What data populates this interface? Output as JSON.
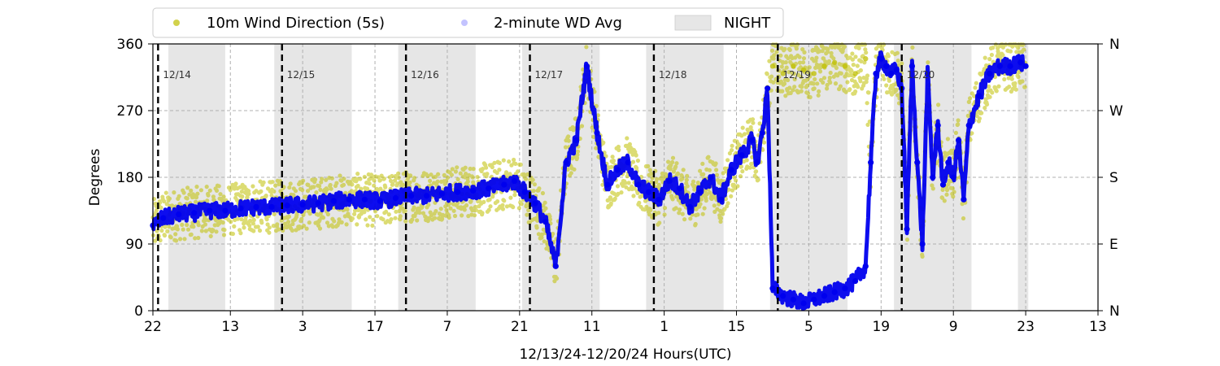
{
  "chart_data": {
    "type": "scatter",
    "xlabel": "12/13/24-12/20/24  Hours(UTC)",
    "ylabel": "Degrees",
    "ylim": [
      0,
      360
    ],
    "y_ticks": [
      0,
      90,
      180,
      270,
      360
    ],
    "y2_ticks": [
      {
        "value": 0,
        "label": "N"
      },
      {
        "value": 90,
        "label": "E"
      },
      {
        "value": 180,
        "label": "S"
      },
      {
        "value": 270,
        "label": "W"
      },
      {
        "value": 360,
        "label": "N"
      }
    ],
    "x_unit": "hours since 2024-12-13 22:00 UTC",
    "xlim": [
      0,
      183
    ],
    "x_ticks": [
      {
        "value": 0,
        "label": "22"
      },
      {
        "value": 15,
        "label": "13"
      },
      {
        "value": 29,
        "label": "3"
      },
      {
        "value": 43,
        "label": "17"
      },
      {
        "value": 57,
        "label": "7"
      },
      {
        "value": 71,
        "label": "21"
      },
      {
        "value": 85,
        "label": "11"
      },
      {
        "value": 99,
        "label": "1"
      },
      {
        "value": 113,
        "label": "15"
      },
      {
        "value": 127,
        "label": "5"
      },
      {
        "value": 141,
        "label": "19"
      },
      {
        "value": 155,
        "label": "9"
      },
      {
        "value": 169,
        "label": "23"
      },
      {
        "value": 183,
        "label": "13"
      }
    ],
    "grid": true,
    "legend_position": "top",
    "day_markers": [
      {
        "x": 1,
        "label": "12/14"
      },
      {
        "x": 25,
        "label": "12/15"
      },
      {
        "x": 49,
        "label": "12/16"
      },
      {
        "x": 73,
        "label": "12/17"
      },
      {
        "x": 97,
        "label": "12/18"
      },
      {
        "x": 121,
        "label": "12/19"
      },
      {
        "x": 145,
        "label": "12/20"
      }
    ],
    "night_periods": [
      [
        3,
        14
      ],
      [
        23.5,
        38.5
      ],
      [
        47.5,
        62.5
      ],
      [
        71.5,
        86.5
      ],
      [
        95.5,
        110.5
      ],
      [
        119.5,
        134.5
      ],
      [
        143.5,
        158.5
      ],
      [
        167.5,
        169.5
      ]
    ],
    "series": [
      {
        "name": "10m Wind Direction (5s)",
        "color": "#bfbf00",
        "x": [
          0,
          2,
          5,
          8,
          11,
          14,
          17,
          20,
          23,
          26,
          29,
          32,
          35,
          38,
          41,
          44,
          47,
          50,
          53,
          56,
          59,
          62,
          65,
          68,
          70,
          72,
          74,
          76,
          78,
          80,
          82,
          84,
          86,
          88,
          90,
          92,
          94,
          96,
          98,
          100,
          102,
          104,
          106,
          108,
          110,
          112,
          114,
          116,
          117,
          118,
          119,
          120,
          122,
          124,
          126,
          128,
          130,
          132,
          134,
          136,
          138,
          139,
          140,
          141,
          142,
          143,
          144,
          145,
          146,
          147,
          148,
          149,
          150,
          151,
          152,
          153,
          154,
          155,
          156,
          157,
          158,
          160,
          162,
          164,
          166,
          168,
          169
        ],
        "y": [
          115,
          125,
          130,
          132,
          135,
          135,
          138,
          140,
          140,
          142,
          143,
          145,
          148,
          150,
          150,
          148,
          152,
          155,
          155,
          158,
          160,
          162,
          165,
          170,
          175,
          160,
          145,
          120,
          60,
          200,
          230,
          330,
          240,
          170,
          190,
          200,
          170,
          160,
          150,
          175,
          165,
          140,
          160,
          180,
          150,
          190,
          210,
          230,
          200,
          240,
          300,
          330,
          320,
          330,
          325,
          320,
          330,
          335,
          330,
          320,
          340,
          200,
          320,
          340,
          330,
          320,
          325,
          300,
          110,
          330,
          200,
          90,
          320,
          180,
          250,
          170,
          200,
          180,
          230,
          150,
          250,
          290,
          320,
          330,
          330,
          335,
          330
        ]
      },
      {
        "name": "2-minute WD Avg",
        "color": "#0000ee",
        "x": [
          0,
          2,
          5,
          8,
          11,
          14,
          17,
          20,
          23,
          26,
          29,
          32,
          35,
          38,
          41,
          44,
          47,
          50,
          53,
          56,
          59,
          62,
          65,
          68,
          70,
          72,
          74,
          76,
          78,
          80,
          82,
          84,
          86,
          88,
          90,
          92,
          94,
          96,
          98,
          100,
          102,
          104,
          106,
          108,
          110,
          112,
          114,
          116,
          117,
          118,
          119,
          120,
          122,
          124,
          126,
          128,
          130,
          132,
          134,
          136,
          138,
          139,
          140,
          141,
          142,
          143,
          144,
          145,
          146,
          147,
          148,
          149,
          150,
          151,
          152,
          153,
          154,
          155,
          156,
          157,
          158,
          160,
          162,
          164,
          166,
          168,
          169
        ],
        "y": [
          115,
          125,
          130,
          132,
          135,
          135,
          138,
          140,
          140,
          142,
          143,
          145,
          148,
          150,
          150,
          148,
          152,
          155,
          155,
          158,
          160,
          162,
          165,
          170,
          175,
          160,
          145,
          120,
          60,
          200,
          230,
          330,
          240,
          170,
          190,
          200,
          170,
          160,
          150,
          175,
          165,
          140,
          160,
          180,
          150,
          190,
          210,
          230,
          200,
          240,
          300,
          30,
          20,
          15,
          10,
          15,
          20,
          25,
          30,
          40,
          60,
          200,
          320,
          340,
          330,
          320,
          325,
          300,
          110,
          330,
          200,
          90,
          320,
          180,
          250,
          170,
          200,
          180,
          230,
          150,
          250,
          290,
          320,
          330,
          330,
          335,
          330
        ]
      }
    ],
    "legend": [
      "10m Wind Direction (5s)",
      "2-minute WD Avg",
      "NIGHT"
    ],
    "night_color": "#e6e6e6"
  }
}
